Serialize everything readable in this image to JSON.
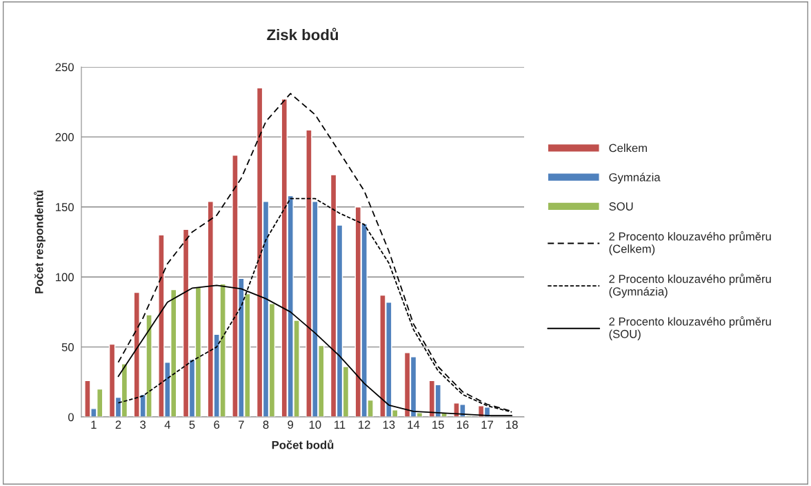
{
  "chart_data": {
    "type": "bar",
    "title": "Zisk bodů",
    "xlabel": "Počet bodů",
    "ylabel": "Počet respondentů",
    "categories": [
      "1",
      "2",
      "3",
      "4",
      "5",
      "6",
      "7",
      "8",
      "9",
      "10",
      "11",
      "12",
      "13",
      "14",
      "15",
      "16",
      "17",
      "18"
    ],
    "series": [
      {
        "name": "Celkem",
        "color": "#c0504d",
        "values": [
          26,
          52,
          89,
          130,
          134,
          154,
          187,
          235,
          227,
          205,
          173,
          150,
          87,
          46,
          26,
          10,
          8,
          null
        ]
      },
      {
        "name": "Gymnázia",
        "color": "#4f81bd",
        "values": [
          6,
          14,
          16,
          39,
          41,
          59,
          99,
          154,
          158,
          154,
          137,
          138,
          82,
          43,
          23,
          9,
          7,
          null
        ]
      },
      {
        "name": "SOU",
        "color": "#9bbb59",
        "values": [
          20,
          38,
          73,
          91,
          93,
          95,
          88,
          81,
          69,
          51,
          36,
          12,
          5,
          3,
          3,
          1,
          null,
          null
        ]
      },
      {
        "name": "2 Procento klouzavého průměru\n(Celkem)",
        "type": "line",
        "color": "#000000",
        "line_style": "dashed",
        "values": [
          null,
          39,
          70.5,
          109.5,
          132,
          144,
          170.5,
          211,
          231,
          216,
          189,
          161.5,
          118.5,
          66.5,
          36,
          18,
          9,
          4
        ]
      },
      {
        "name": "2 Procento klouzavého průměru\n(Gymnázia)",
        "type": "line",
        "color": "#000000",
        "line_style": "dotted",
        "values": [
          null,
          10,
          15,
          27.5,
          40,
          50,
          79,
          126.5,
          156,
          156,
          145.5,
          137.5,
          110,
          62.5,
          33,
          16,
          8,
          3.5
        ]
      },
      {
        "name": "2 Procento klouzavého průměru\n(SOU)",
        "type": "line",
        "color": "#000000",
        "line_style": "solid",
        "values": [
          null,
          29,
          55.5,
          82,
          92,
          94,
          91.5,
          84.5,
          75,
          60,
          43.5,
          24,
          8.5,
          4,
          3,
          2,
          1,
          1
        ]
      }
    ],
    "ylim": [
      0,
      250
    ],
    "yticks": [
      0,
      50,
      100,
      150,
      200,
      250
    ],
    "grid": "y",
    "legend": "right"
  }
}
